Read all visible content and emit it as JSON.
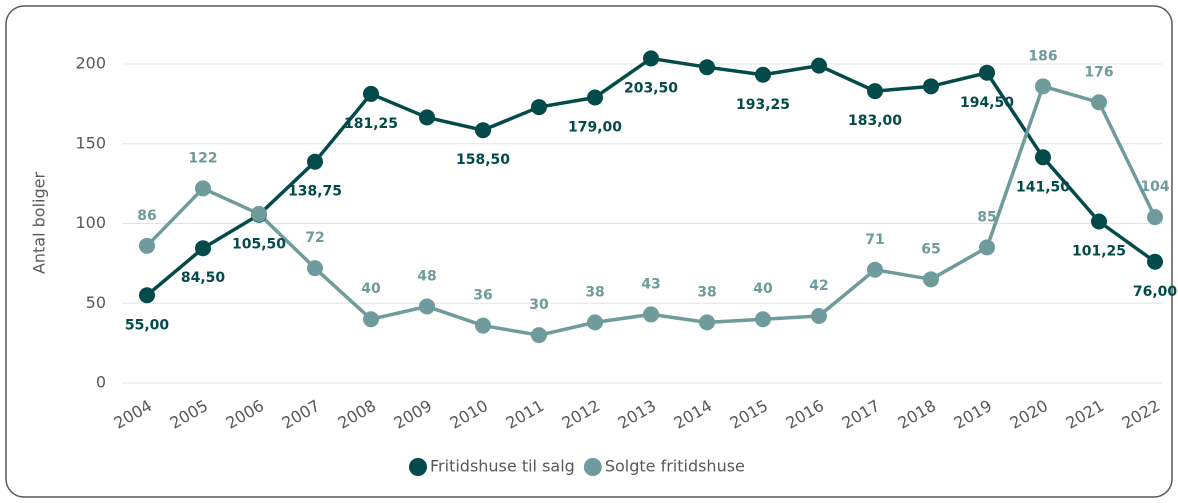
{
  "chart_data": {
    "type": "line",
    "y_label": "Antal boliger",
    "categories": [
      "2004",
      "2005",
      "2006",
      "2007",
      "2008",
      "2009",
      "2010",
      "2011",
      "2012",
      "2013",
      "2014",
      "2015",
      "2016",
      "2017",
      "2018",
      "2019",
      "2020",
      "2021",
      "2022"
    ],
    "series": [
      {
        "name": "Fritidshuse til salg",
        "color": "#034a4a",
        "values": [
          55,
          84.5,
          105.5,
          138.75,
          181.25,
          166.5,
          158.5,
          173,
          179,
          203.5,
          198,
          193.25,
          199,
          183,
          186,
          194.5,
          141.5,
          101.25,
          76
        ],
        "value_labels": [
          "55,00",
          "84,50",
          "105,50",
          "138,75",
          "181,25",
          null,
          "158,50",
          null,
          "179,00",
          "203,50",
          null,
          "193,25",
          null,
          "183,00",
          null,
          "194,50",
          "141,50",
          "101,25",
          "76,00"
        ]
      },
      {
        "name": "Solgte fritidshuse",
        "color": "#6f9b9c",
        "values": [
          86,
          122,
          106,
          72,
          40,
          48,
          36,
          30,
          38,
          43,
          38,
          40,
          42,
          71,
          65,
          85,
          186,
          176,
          104
        ],
        "value_labels": [
          "86",
          "122",
          null,
          "72",
          "40",
          "48",
          "36",
          "30",
          "38",
          "43",
          "38",
          "40",
          "42",
          "71",
          "65",
          "85",
          "186",
          "176",
          "104"
        ]
      }
    ],
    "ylim": [
      0,
      200
    ],
    "yticks": [
      0,
      50,
      100,
      150,
      200
    ],
    "grid": true
  }
}
